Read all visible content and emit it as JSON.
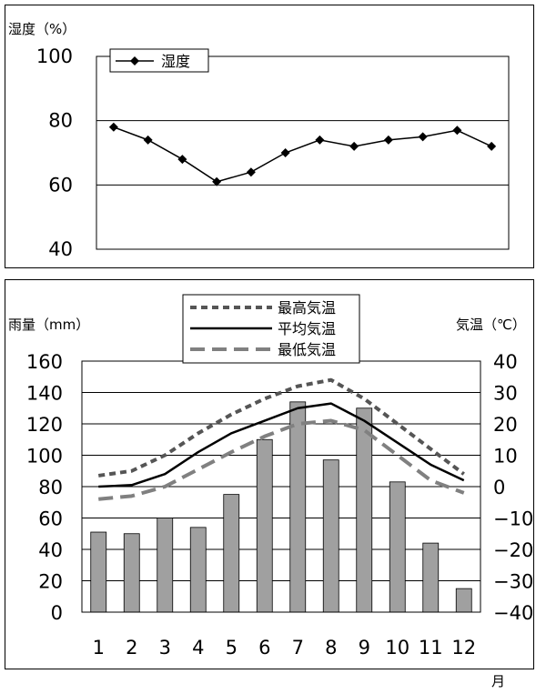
{
  "chart_data": [
    {
      "type": "line",
      "ylabel": "湿度（%）",
      "ylim": [
        40,
        100
      ],
      "yticks": [
        "100",
        "80",
        "60",
        "40"
      ],
      "legend": "top-left",
      "grid": true,
      "series": [
        {
          "name": "湿度",
          "color": "#000000",
          "marker": "diamond",
          "values": [
            78,
            74,
            68,
            61,
            64,
            70,
            74,
            72,
            74,
            75,
            77,
            72
          ]
        }
      ]
    },
    {
      "type": "bar",
      "x_unit": "月",
      "categories": [
        "1",
        "2",
        "3",
        "4",
        "5",
        "6",
        "7",
        "8",
        "9",
        "10",
        "11",
        "12"
      ],
      "ylabel": "雨量（mm）",
      "ylim": [
        0,
        160
      ],
      "yticks": [
        "160",
        "140",
        "120",
        "100",
        "80",
        "60",
        "40",
        "20",
        "0"
      ],
      "y2label": "気温（℃）",
      "y2lim": [
        -40,
        40
      ],
      "y2ticks": [
        "40",
        "30",
        "20",
        "10",
        "0",
        "−10",
        "−20",
        "−30",
        "−40"
      ],
      "legend": "top-center",
      "grid": true,
      "bars": {
        "color": "#a0a0a0",
        "values": [
          51,
          50,
          60,
          54,
          75,
          110,
          134,
          97,
          130,
          83,
          44,
          15
        ]
      },
      "series": [
        {
          "name": "最高気温",
          "style": "dotted",
          "color": "#555555",
          "values": [
            3.5,
            5,
            10,
            17,
            23,
            28,
            32,
            34,
            28,
            20,
            12,
            4
          ]
        },
        {
          "name": "平均気温",
          "style": "solid",
          "color": "#000000",
          "values": [
            0,
            0.5,
            4,
            11,
            17,
            21,
            25,
            26.5,
            21,
            14,
            7,
            2
          ]
        },
        {
          "name": "最低気温",
          "style": "dashed",
          "color": "#808080",
          "values": [
            -4,
            -3,
            0,
            5.5,
            11,
            16,
            20,
            21,
            18,
            10,
            2,
            -2
          ]
        }
      ]
    }
  ]
}
